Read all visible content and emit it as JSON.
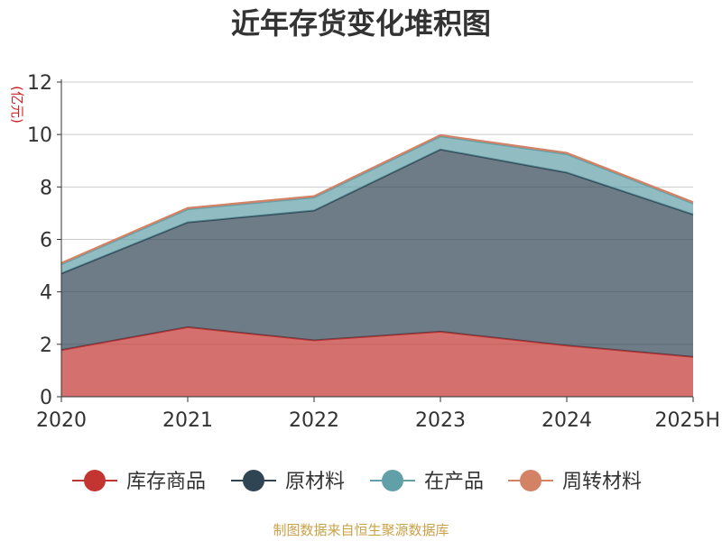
{
  "title": "近年存货变化堆积图",
  "footer": "制图数据来自恒生聚源数据库",
  "chart_data": {
    "type": "area",
    "stacked": true,
    "title": "近年存货变化堆积图",
    "xlabel": "",
    "ylabel": "(亿元)",
    "categories": [
      "2020",
      "2021",
      "2022",
      "2023",
      "2024",
      "2025H"
    ],
    "ylim": [
      0,
      12
    ],
    "yticks": [
      0,
      2,
      4,
      6,
      8,
      10,
      12
    ],
    "grid": true,
    "legend_position": "bottom",
    "series": [
      {
        "name": "库存商品",
        "color": "#c23531",
        "values": [
          1.78,
          2.65,
          2.15,
          2.48,
          1.95,
          1.52
        ]
      },
      {
        "name": "原材料",
        "color": "#2f4554",
        "values": [
          2.92,
          4.0,
          4.95,
          6.95,
          6.6,
          5.43
        ]
      },
      {
        "name": "在产品",
        "color": "#61a0a8",
        "values": [
          0.35,
          0.5,
          0.5,
          0.5,
          0.7,
          0.42
        ]
      },
      {
        "name": "周转材料",
        "color": "#d48265",
        "values": [
          0.05,
          0.05,
          0.05,
          0.05,
          0.05,
          0.05
        ]
      }
    ]
  }
}
